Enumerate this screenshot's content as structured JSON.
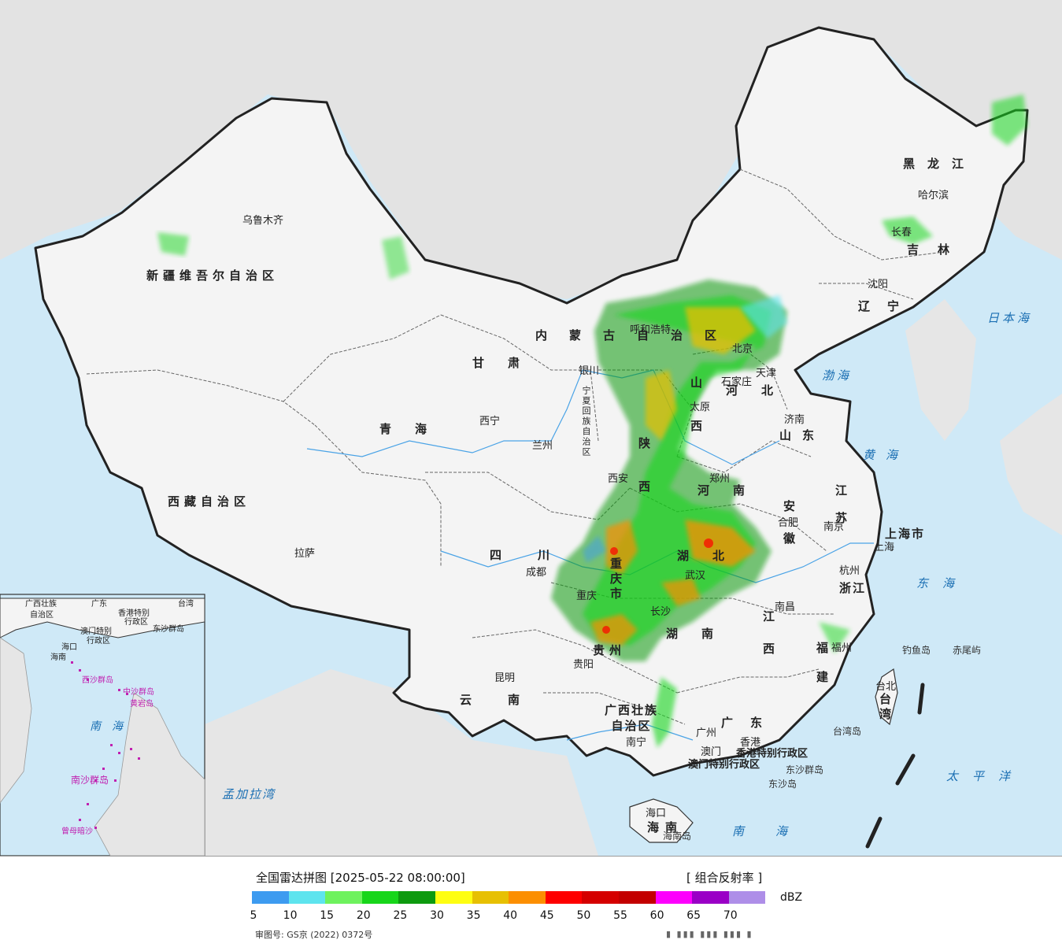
{
  "colors": {
    "sea": "#cfe9f7",
    "land": "#f4f4f4",
    "neighbor_land": "#e3e3e3",
    "border": "#222222",
    "river": "#4aa3e6"
  },
  "map": {
    "provinces": [
      "新疆维吾尔自治区",
      "西藏自治区",
      "青海",
      "甘肃",
      "内蒙古自治区",
      "黑龙江",
      "吉林",
      "辽宁",
      "河北",
      "山西",
      "陕西",
      "河南",
      "山东",
      "江苏",
      "安徽",
      "湖北",
      "四川",
      "云南",
      "湖南",
      "江西",
      "浙江",
      "福建",
      "广西壮族自治区",
      "广东",
      "海南",
      "宁夏回族自治区",
      "重庆市",
      "上海市",
      "贵州"
    ],
    "cities": [
      "乌鲁木齐",
      "拉萨",
      "西宁",
      "兰州",
      "银川",
      "呼和浩特",
      "北京",
      "天津",
      "石家庄",
      "太原",
      "济南",
      "西安",
      "郑州",
      "合肥",
      "南京",
      "上海",
      "杭州",
      "南昌",
      "福州",
      "台北",
      "成都",
      "重庆",
      "贵阳",
      "昆明",
      "南宁",
      "广州",
      "香港",
      "澳门",
      "海口",
      "哈尔滨",
      "长春",
      "沈阳",
      "武汉",
      "长沙"
    ],
    "seas": [
      "渤海",
      "黄海",
      "东海",
      "日本海",
      "南海",
      "太平洋",
      "孟加拉湾"
    ],
    "regions": [
      "台湾",
      "香港特别行政区",
      "澳门特别行政区",
      "东沙群岛",
      "东沙岛",
      "钓鱼岛",
      "赤尾屿",
      "台湾岛",
      "海南岛"
    ],
    "inset_labels": [
      "广西壮族",
      "自治区",
      "广东",
      "台湾",
      "香港特别",
      "行政区",
      "澳门特别",
      "行政区",
      "东沙群岛",
      "海口",
      "海南",
      "西沙群岛",
      "中沙群岛",
      "黄岩岛",
      "南海",
      "南沙群岛",
      "曾母暗沙"
    ]
  },
  "legend": {
    "title": "全国雷达拼图 [2025-05-22 08:00:00]",
    "product": "[ 组合反射率 ]",
    "unit": "dBZ",
    "ticks": [
      "5",
      "10",
      "15",
      "20",
      "25",
      "30",
      "35",
      "40",
      "45",
      "50",
      "55",
      "60",
      "65",
      "70"
    ],
    "swatches": [
      "#3d9bf0",
      "#5ee4ee",
      "#6ef25e",
      "#17d61a",
      "#0d9a0f",
      "#fefe12",
      "#e7c003",
      "#fc8f01",
      "#fe0000",
      "#d50000",
      "#c30000",
      "#fd00fd",
      "#9a00c6",
      "#ae8ee8"
    ],
    "approval": "审图号: GS京 (2022) 0372号",
    "stamp": "▮ ▮▮▮ ▮▮▮ ▮▮▮ ▮"
  }
}
